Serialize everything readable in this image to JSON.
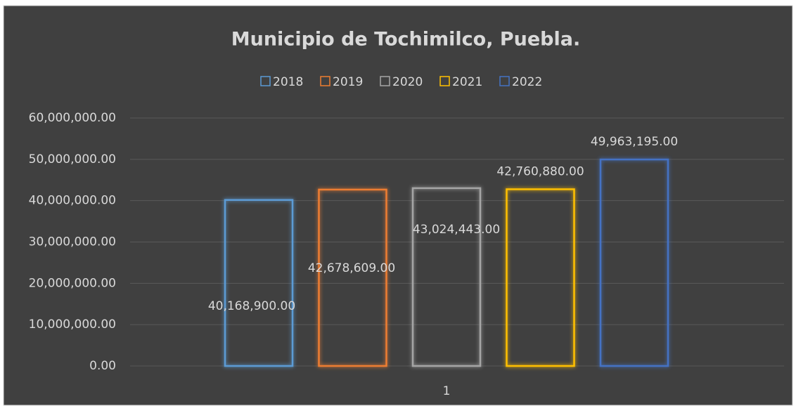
{
  "chart_data": {
    "type": "bar",
    "title": "Municipio de Tochimilco, Puebla.",
    "categories": [
      "1"
    ],
    "series": [
      {
        "name": "2018",
        "color": "#5b9bd5",
        "values": [
          40168900
        ],
        "value_labels": [
          "40,168,900.00"
        ]
      },
      {
        "name": "2019",
        "color": "#ed7d31",
        "values": [
          42678609
        ],
        "value_labels": [
          "42,678,609.00"
        ]
      },
      {
        "name": "2020",
        "color": "#a5a5a5",
        "values": [
          43024443
        ],
        "value_labels": [
          "43,024,443.00"
        ]
      },
      {
        "name": "2021",
        "color": "#ffc000",
        "values": [
          42760880
        ],
        "value_labels": [
          "42,760,880.00"
        ]
      },
      {
        "name": "2022",
        "color": "#4472c4",
        "values": [
          49963195
        ],
        "value_labels": [
          "49,963,195.00"
        ]
      }
    ],
    "ylim": [
      0,
      60000000
    ],
    "yticks": [
      {
        "value": 0,
        "label": "0.00"
      },
      {
        "value": 10000000,
        "label": "10,000,000.00"
      },
      {
        "value": 20000000,
        "label": "20,000,000.00"
      },
      {
        "value": 30000000,
        "label": "30,000,000.00"
      },
      {
        "value": 40000000,
        "label": "40,000,000.00"
      },
      {
        "value": 50000000,
        "label": "50,000,000.00"
      },
      {
        "value": 60000000,
        "label": "60,000,000.00"
      }
    ],
    "grid": true,
    "legend": "top"
  }
}
